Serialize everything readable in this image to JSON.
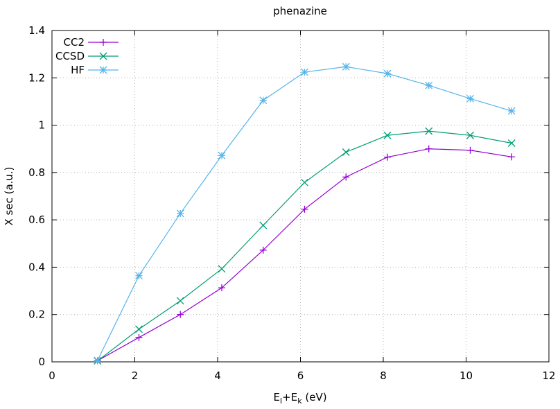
{
  "chart_data": {
    "type": "line",
    "title": "phenazine",
    "xlabel": {
      "prefix": "E",
      "sub1": "I",
      "mid": "+E",
      "sub2": "k",
      "suffix": " (eV)"
    },
    "ylabel": "X sec (a.u.)",
    "xlim": [
      0,
      12
    ],
    "ylim": [
      0,
      1.4
    ],
    "xticks": [
      "0",
      "2",
      "4",
      "6",
      "8",
      "10",
      "12"
    ],
    "yticks": [
      "0",
      "0.2",
      "0.4",
      "0.6",
      "0.8",
      "1",
      "1.2",
      "1.4"
    ],
    "grid": true,
    "legend_position": "top-left",
    "x": [
      1.1,
      2.1,
      3.1,
      4.1,
      5.1,
      6.1,
      7.1,
      8.1,
      9.1,
      10.1,
      11.1
    ],
    "series": [
      {
        "name": "CC2",
        "marker": "plus",
        "color": "#9400d3",
        "values": [
          0.005,
          0.103,
          0.2,
          0.313,
          0.472,
          0.645,
          0.781,
          0.865,
          0.9,
          0.894,
          0.866
        ]
      },
      {
        "name": "CCSD",
        "marker": "cross",
        "color": "#009e73",
        "values": [
          0.004,
          0.138,
          0.258,
          0.393,
          0.577,
          0.758,
          0.886,
          0.957,
          0.975,
          0.957,
          0.924
        ]
      },
      {
        "name": "HF",
        "marker": "star",
        "color": "#56b4e9",
        "values": [
          0.006,
          0.364,
          0.627,
          0.872,
          1.105,
          1.224,
          1.247,
          1.218,
          1.168,
          1.112,
          1.06
        ]
      }
    ]
  }
}
